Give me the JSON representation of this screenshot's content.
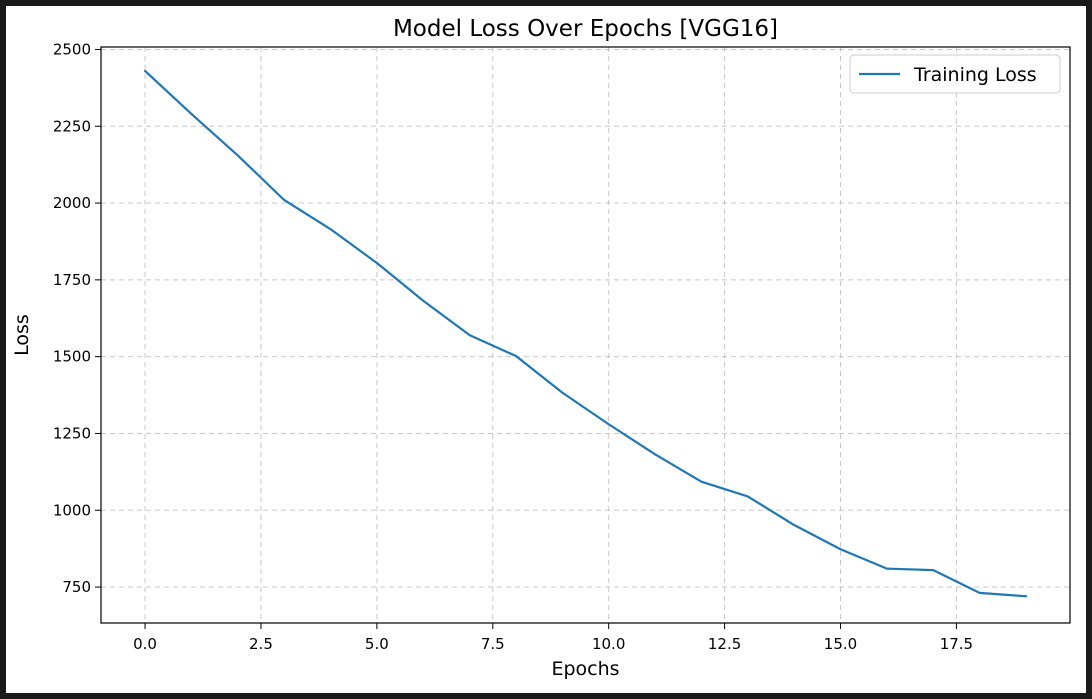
{
  "chart_data": {
    "type": "line",
    "title": "Model Loss Over Epochs [VGG16]",
    "xlabel": "Epochs",
    "ylabel": "Loss",
    "xlim": [
      -0.95,
      19.95
    ],
    "ylim": [
      633,
      2508
    ],
    "xticks": [
      0.0,
      2.5,
      5.0,
      7.5,
      10.0,
      12.5,
      15.0,
      17.5
    ],
    "xtick_labels": [
      "0.0",
      "2.5",
      "5.0",
      "7.5",
      "10.0",
      "12.5",
      "15.0",
      "17.5"
    ],
    "yticks": [
      750,
      1000,
      1250,
      1500,
      1750,
      2000,
      2250,
      2500
    ],
    "ytick_labels": [
      "750",
      "1000",
      "1250",
      "1500",
      "1750",
      "2000",
      "2250",
      "2500"
    ],
    "grid": true,
    "legend_position": "top-right",
    "x": [
      0,
      1,
      2,
      3,
      4,
      5,
      6,
      7,
      8,
      9,
      10,
      11,
      12,
      13,
      14,
      15,
      16,
      17,
      18,
      19
    ],
    "series": [
      {
        "name": "Training Loss",
        "color": "#1f77b4",
        "values": [
          2430,
          2290,
          2155,
          2010,
          1915,
          1805,
          1682,
          1570,
          1502,
          1383,
          1280,
          1182,
          1093,
          1045,
          952,
          873,
          810,
          805,
          731,
          720
        ]
      }
    ]
  }
}
